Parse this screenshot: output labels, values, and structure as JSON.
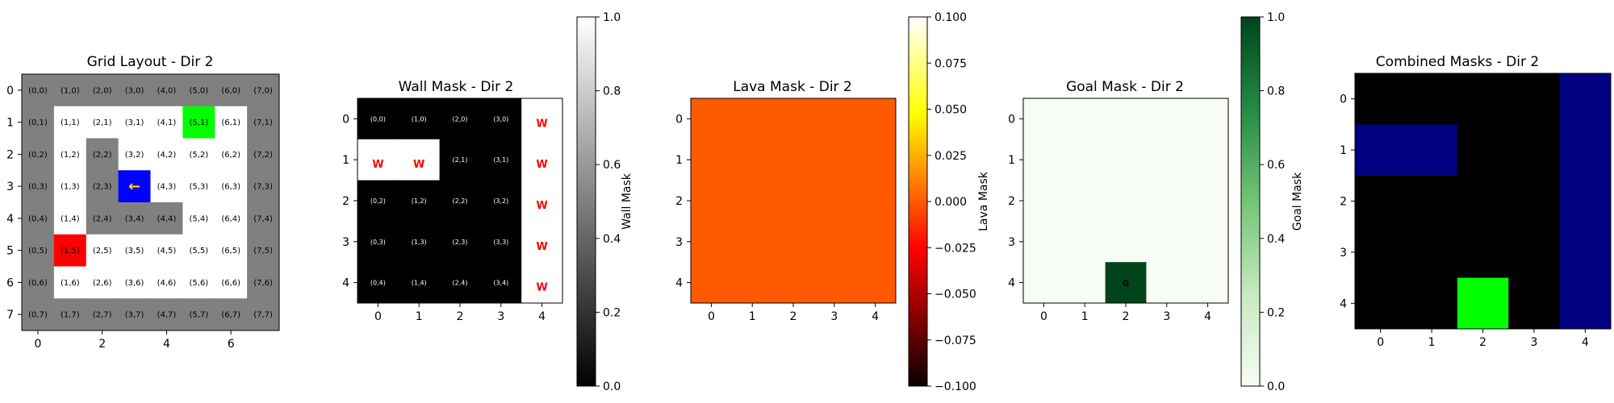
{
  "colors": {
    "grid_wall": "#808080",
    "grid_empty": "#ffffff",
    "grid_goal": "#00ff00",
    "grid_agent": "#0000ff",
    "grid_lava": "#ff0000",
    "agent_arrow": "#ffd700",
    "wall_label": "#ff0000",
    "lava_fill": "#ff5a00",
    "goal_low": "#f7fcf5",
    "goal_high": "#00441b",
    "combined_bg": "#000000",
    "combined_wall": "#000080",
    "combined_goal": "#00ff00"
  },
  "chart_data": [
    {
      "type": "heatmap",
      "title": "Grid Layout - Dir 2",
      "xlabel": "",
      "ylabel": "",
      "size": [
        8,
        8
      ],
      "xticks": [
        0,
        2,
        4,
        6
      ],
      "yticks": [
        0,
        1,
        2,
        3,
        4,
        5,
        6,
        7
      ],
      "legend": "none",
      "cells": [
        "WWWWWWWW",
        "WEEEEGEW",
        "WEWEEEEW",
        "WEWAEEEW",
        "WEWWWEEW",
        "WLEEEEEW",
        "WEEEEEEW",
        "WWWWWWWW"
      ],
      "agent_glyph": "←",
      "cell_label_format": "(x,y)"
    },
    {
      "type": "heatmap",
      "title": "Wall Mask - Dir 2",
      "size": [
        5,
        5
      ],
      "xticks": [
        0,
        1,
        2,
        3,
        4
      ],
      "yticks": [
        0,
        1,
        2,
        3,
        4
      ],
      "values": [
        [
          0,
          0,
          0,
          0,
          1
        ],
        [
          1,
          1,
          0,
          0,
          1
        ],
        [
          0,
          0,
          0,
          0,
          1
        ],
        [
          0,
          0,
          0,
          0,
          1
        ],
        [
          0,
          0,
          0,
          0,
          1
        ]
      ],
      "cell_labels": [
        [
          "(0,0)",
          "(1,0)",
          "(2,0)",
          "(3,0)",
          "W"
        ],
        [
          "W",
          "W",
          "(2,1)",
          "(3,1)",
          "W"
        ],
        [
          "(0,2)",
          "(1,2)",
          "(2,2)",
          "(3,2)",
          "W"
        ],
        [
          "(0,3)",
          "(1,3)",
          "(2,3)",
          "(3,3)",
          "W"
        ],
        [
          "(0,4)",
          "(1,4)",
          "(2,4)",
          "(3,4)",
          "W"
        ]
      ],
      "colorbar": {
        "label": "Wall Mask",
        "range": [
          0.0,
          1.0
        ],
        "ticks": [
          "0.0",
          "0.2",
          "0.4",
          "0.6",
          "0.8",
          "1.0"
        ],
        "colormap": "gray"
      }
    },
    {
      "type": "heatmap",
      "title": "Lava Mask - Dir 2",
      "size": [
        5,
        5
      ],
      "xticks": [
        0,
        1,
        2,
        3,
        4
      ],
      "yticks": [
        0,
        1,
        2,
        3,
        4
      ],
      "values": [
        [
          0,
          0,
          0,
          0,
          0
        ],
        [
          0,
          0,
          0,
          0,
          0
        ],
        [
          0,
          0,
          0,
          0,
          0
        ],
        [
          0,
          0,
          0,
          0,
          0
        ],
        [
          0,
          0,
          0,
          0,
          0
        ]
      ],
      "colorbar": {
        "label": "Lava Mask",
        "range": [
          -0.1,
          0.1
        ],
        "ticks": [
          "0.100",
          "0.075",
          "0.050",
          "0.025",
          "0.000",
          "−0.025",
          "−0.050",
          "−0.075",
          "−0.100"
        ],
        "colormap": "hot"
      }
    },
    {
      "type": "heatmap",
      "title": "Goal Mask - Dir 2",
      "size": [
        5,
        5
      ],
      "xticks": [
        0,
        1,
        2,
        3,
        4
      ],
      "yticks": [
        0,
        1,
        2,
        3,
        4
      ],
      "values": [
        [
          0,
          0,
          0,
          0,
          0
        ],
        [
          0,
          0,
          0,
          0,
          0
        ],
        [
          0,
          0,
          0,
          0,
          0
        ],
        [
          0,
          0,
          0,
          0,
          0
        ],
        [
          0,
          0,
          1,
          0,
          0
        ]
      ],
      "goal_label": "G",
      "colorbar": {
        "label": "Goal Mask",
        "range": [
          0.0,
          1.0
        ],
        "ticks": [
          "0.0",
          "0.2",
          "0.4",
          "0.6",
          "0.8",
          "1.0"
        ],
        "colormap": "Greens"
      }
    },
    {
      "type": "heatmap",
      "title": "Combined Masks - Dir 2",
      "size": [
        5,
        5
      ],
      "xticks": [
        0,
        1,
        2,
        3,
        4
      ],
      "yticks": [
        0,
        1,
        2,
        3,
        4
      ],
      "cells": [
        "....W",
        "WW..W",
        "....W",
        "....W",
        "..G.W"
      ]
    }
  ]
}
